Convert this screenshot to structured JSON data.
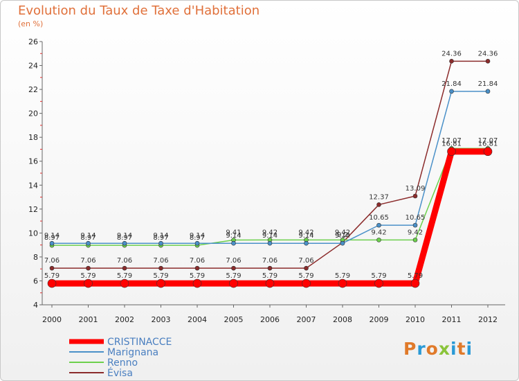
{
  "title": "Evolution du Taux de Taxe d'Habitation",
  "subtitle": "(en %)",
  "logo": "Proxiti",
  "chart_data": {
    "type": "line",
    "x": [
      "2000",
      "2001",
      "2002",
      "2003",
      "2004",
      "2005",
      "2006",
      "2007",
      "2008",
      "2009",
      "2010",
      "2011",
      "2012"
    ],
    "ylim": [
      4,
      26
    ],
    "yticks": [
      4,
      6,
      8,
      10,
      12,
      14,
      16,
      18,
      20,
      22,
      24,
      26
    ],
    "grid": false,
    "legend_position": "bottom-left",
    "series": [
      {
        "name": "CRISTINACCE",
        "color": "#ff0000",
        "values": [
          5.79,
          5.79,
          5.79,
          5.79,
          5.79,
          5.79,
          5.79,
          5.79,
          5.79,
          5.79,
          5.79,
          16.81,
          16.81
        ],
        "labels": [
          "5.79",
          "5.79",
          "5.79",
          "5.79",
          "5.79",
          "5.79",
          "5.79",
          "5.79",
          "5.79",
          "5.79",
          "5.79",
          "16.81",
          "16.81"
        ]
      },
      {
        "name": "Marignana",
        "color": "#4a90c8",
        "values": [
          9.14,
          9.14,
          9.14,
          9.14,
          9.14,
          9.14,
          9.14,
          9.14,
          9.14,
          10.65,
          10.65,
          21.84,
          21.84
        ],
        "labels": [
          "9.14",
          "9.14",
          "9.14",
          "9.14",
          "9.14",
          "9.14",
          "9.14",
          "9.14",
          "9.14",
          "10.65",
          "10.65",
          "21.84",
          "21.84"
        ]
      },
      {
        "name": "Renno",
        "color": "#6cd04c",
        "values": [
          8.97,
          8.97,
          8.97,
          8.97,
          8.97,
          9.41,
          9.42,
          9.42,
          9.42,
          9.42,
          9.42,
          17.07,
          17.07
        ],
        "labels": [
          "8.97",
          "8.97",
          "8.97",
          "8.97",
          "8.97",
          "9.41",
          "9.42",
          "9.42",
          "9.42",
          "9.42",
          "9.42",
          "17.07",
          "17.07"
        ]
      },
      {
        "name": "Évisa",
        "color": "#8b2b2b",
        "values": [
          7.06,
          7.06,
          7.06,
          7.06,
          7.06,
          7.06,
          7.06,
          7.06,
          9.2,
          12.37,
          13.09,
          24.36,
          24.36
        ],
        "labels": [
          "7.06",
          "7.06",
          "7.06",
          "7.06",
          "7.06",
          "7.06",
          "7.06",
          "7.06",
          "9.2",
          "12.37",
          "13.09",
          "24.36",
          "24.36"
        ]
      }
    ]
  }
}
